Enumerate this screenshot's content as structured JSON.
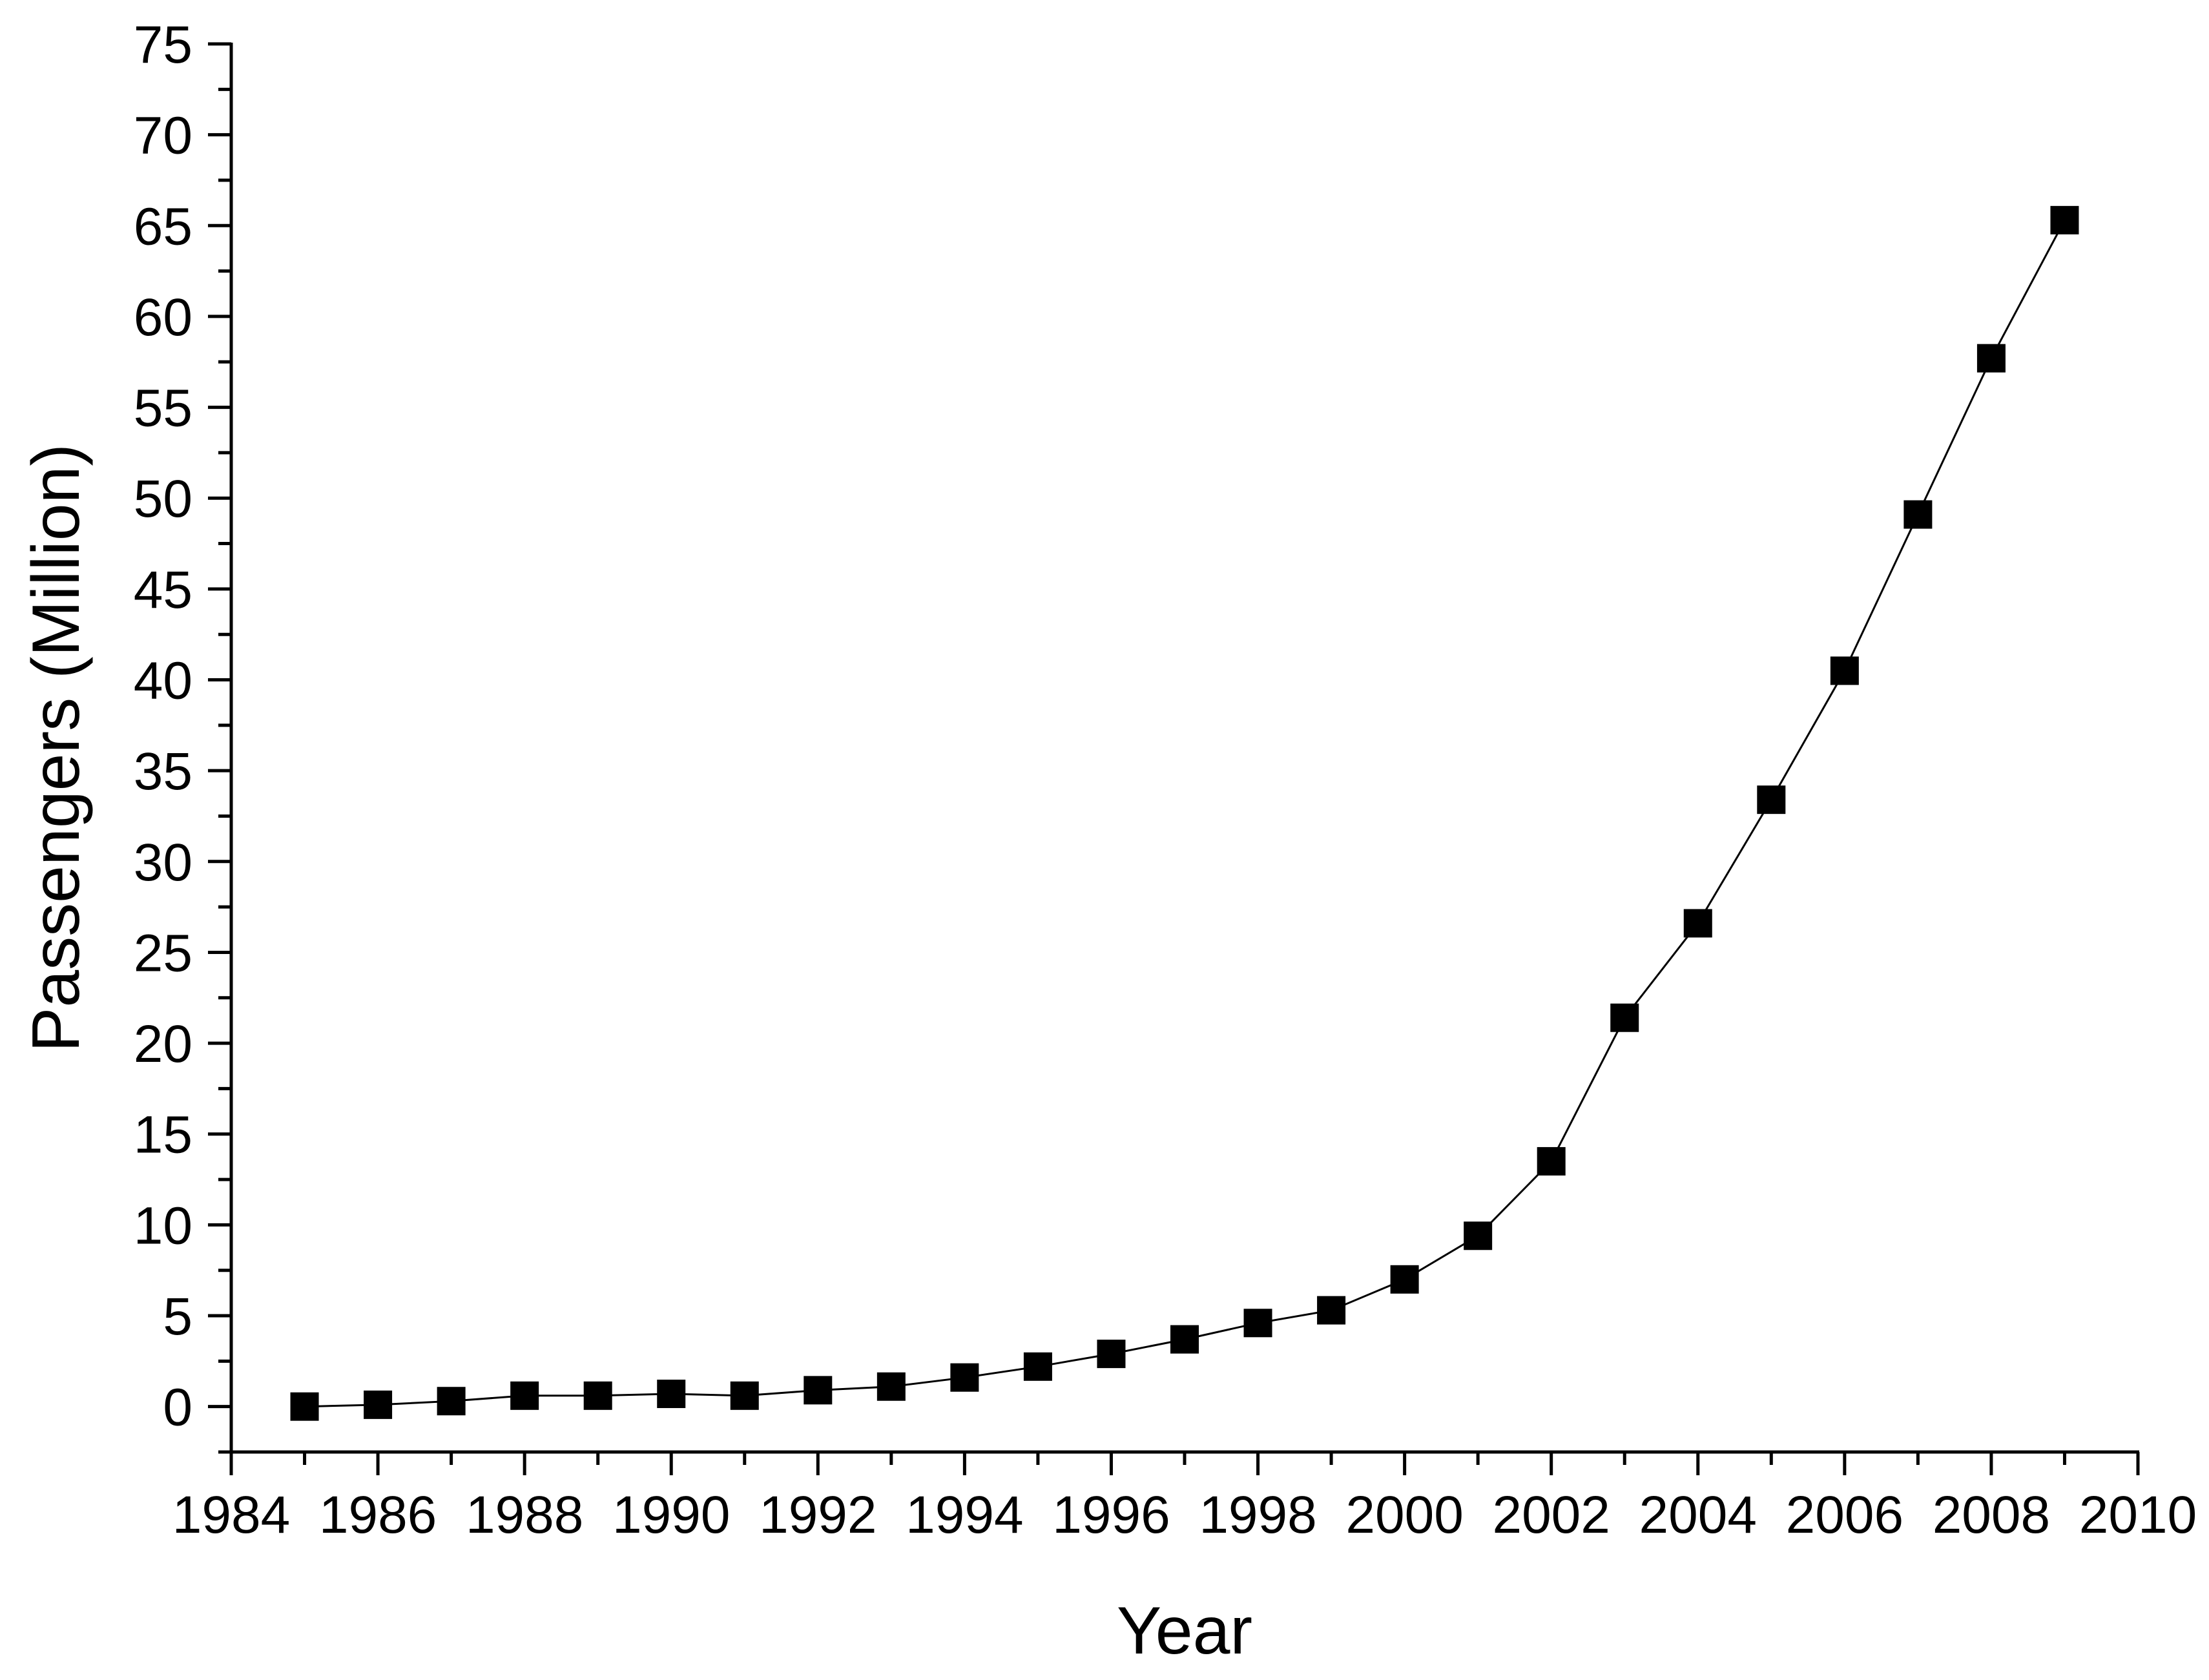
{
  "chart_data": {
    "type": "line",
    "title": "",
    "xlabel": "Year",
    "ylabel": "Passengers (Million)",
    "xlim": [
      1984,
      2010
    ],
    "ylim": [
      -2.5,
      75
    ],
    "x_ticks": [
      1984,
      1986,
      1988,
      1990,
      1992,
      1994,
      1996,
      1998,
      2000,
      2002,
      2004,
      2006,
      2008,
      2010
    ],
    "y_ticks": [
      0,
      5,
      10,
      15,
      20,
      25,
      30,
      35,
      40,
      45,
      50,
      55,
      60,
      65,
      70,
      75
    ],
    "marker": "square",
    "grid": false,
    "legend": "none",
    "colors": {
      "series": "#000000",
      "axis": "#000000",
      "background": "#ffffff"
    },
    "series": [
      {
        "x": [
          1985,
          1986,
          1987,
          1988,
          1989,
          1990,
          1991,
          1992,
          1993,
          1994,
          1995,
          1996,
          1997,
          1998,
          1999,
          2000,
          2001,
          2002,
          2003,
          2004,
          2005,
          2006,
          2007,
          2008,
          2009
        ],
        "values": [
          0.0,
          0.1,
          0.3,
          0.6,
          0.6,
          0.7,
          0.6,
          0.9,
          1.1,
          1.6,
          2.2,
          2.9,
          3.7,
          4.6,
          5.3,
          7.0,
          9.4,
          13.5,
          21.4,
          26.6,
          33.4,
          40.5,
          49.1,
          57.7,
          65.3
        ]
      }
    ]
  }
}
